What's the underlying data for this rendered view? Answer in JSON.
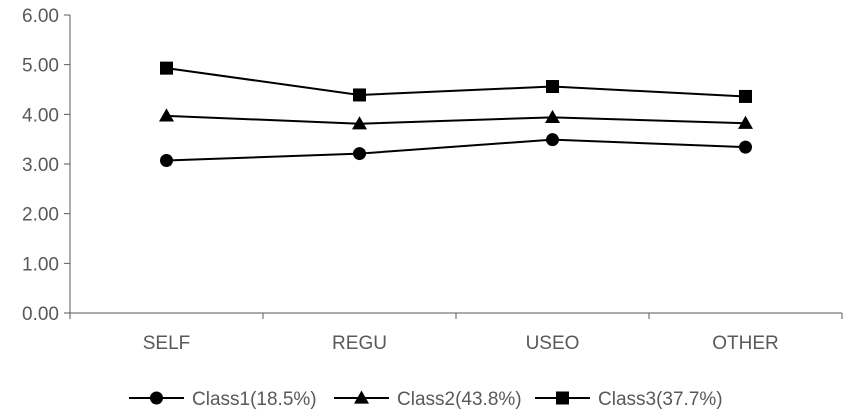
{
  "chart_data": {
    "type": "line",
    "title": "",
    "xlabel": "",
    "ylabel": "",
    "categories": [
      "SELF",
      "REGU",
      "USEO",
      "OTHER"
    ],
    "ylim": [
      0,
      6
    ],
    "yticks": [
      "0.00",
      "1.00",
      "2.00",
      "3.00",
      "4.00",
      "5.00",
      "6.00"
    ],
    "grid": false,
    "legend_position": "bottom",
    "series": [
      {
        "name": "Class1(18.5%)",
        "marker": "circle",
        "color": "#000000",
        "values": [
          3.07,
          3.21,
          3.49,
          3.34
        ]
      },
      {
        "name": "Class2(43.8%)",
        "marker": "triangle",
        "color": "#000000",
        "values": [
          3.97,
          3.81,
          3.94,
          3.82
        ]
      },
      {
        "name": "Class3(37.7%)",
        "marker": "square",
        "color": "#000000",
        "values": [
          4.93,
          4.39,
          4.56,
          4.36
        ]
      }
    ]
  }
}
